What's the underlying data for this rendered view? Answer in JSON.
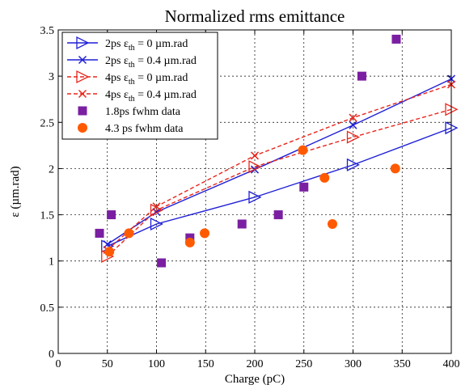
{
  "chart_data": {
    "type": "line",
    "title": "Normalized rms emittance",
    "xlabel": "Charge (pC)",
    "ylabel": "ε (µm.rad)",
    "xlim": [
      0,
      400
    ],
    "ylim": [
      0,
      3.5
    ],
    "x_ticks": [
      "0",
      "50",
      "100",
      "150",
      "200",
      "250",
      "300",
      "350",
      "400"
    ],
    "y_ticks": [
      "0",
      "0.5",
      "1",
      "1.5",
      "2",
      "2.5",
      "3",
      "3.5"
    ],
    "grid": true,
    "legend_position": "top-left",
    "series": [
      {
        "name": "2ps εth = 0 µm.rad",
        "legend": {
          "main": "2ps ε",
          "sub": "th",
          "rest": " = 0 µm.rad"
        },
        "marker": "triangle-right",
        "line": "solid",
        "color": "#1f1fd6",
        "x": [
          50,
          100,
          200,
          300,
          400
        ],
        "y": [
          1.16,
          1.4,
          1.69,
          2.04,
          2.44
        ]
      },
      {
        "name": "2ps εth = 0.4 µm.rad",
        "legend": {
          "main": "2ps ε",
          "sub": "th",
          "rest": " = 0.4 µm.rad"
        },
        "marker": "x",
        "line": "solid",
        "color": "#1f1fd6",
        "x": [
          50,
          100,
          200,
          300,
          400
        ],
        "y": [
          1.18,
          1.53,
          1.99,
          2.47,
          2.97
        ]
      },
      {
        "name": "4ps εth = 0 µm.rad",
        "legend": {
          "main": "4ps ε",
          "sub": "th",
          "rest": " = 0 µm.rad"
        },
        "marker": "triangle-right",
        "line": "dashed",
        "color": "#e8261c",
        "x": [
          50,
          100,
          200,
          300,
          400
        ],
        "y": [
          1.05,
          1.55,
          2.02,
          2.34,
          2.64
        ]
      },
      {
        "name": "4ps εth = 0.4 µm.rad",
        "legend": {
          "main": "4ps ε",
          "sub": "th",
          "rest": " = 0.4 µm.rad"
        },
        "marker": "x",
        "line": "dashed",
        "color": "#e8261c",
        "x": [
          50,
          100,
          200,
          300,
          400
        ],
        "y": [
          1.12,
          1.59,
          2.14,
          2.55,
          2.91
        ]
      },
      {
        "name": "1.8ps fwhm data",
        "legend": {
          "main": "1.8ps fwhm data",
          "sub": "",
          "rest": ""
        },
        "marker": "square",
        "line": "none",
        "color": "#7b1fa2",
        "x": [
          42,
          54,
          105,
          134,
          187,
          224,
          250,
          309,
          344
        ],
        "y": [
          1.3,
          1.5,
          0.98,
          1.25,
          1.4,
          1.5,
          1.8,
          3.0,
          3.4
        ]
      },
      {
        "name": "4.3 ps fwhm data",
        "legend": {
          "main": "4.3 ps fwhm data",
          "sub": "",
          "rest": ""
        },
        "marker": "circle",
        "line": "none",
        "color": "#ff5a00",
        "x": [
          52,
          72,
          134,
          149,
          249,
          271,
          279,
          343
        ],
        "y": [
          1.1,
          1.3,
          1.2,
          1.3,
          2.2,
          1.9,
          1.4,
          2.0
        ]
      }
    ]
  }
}
